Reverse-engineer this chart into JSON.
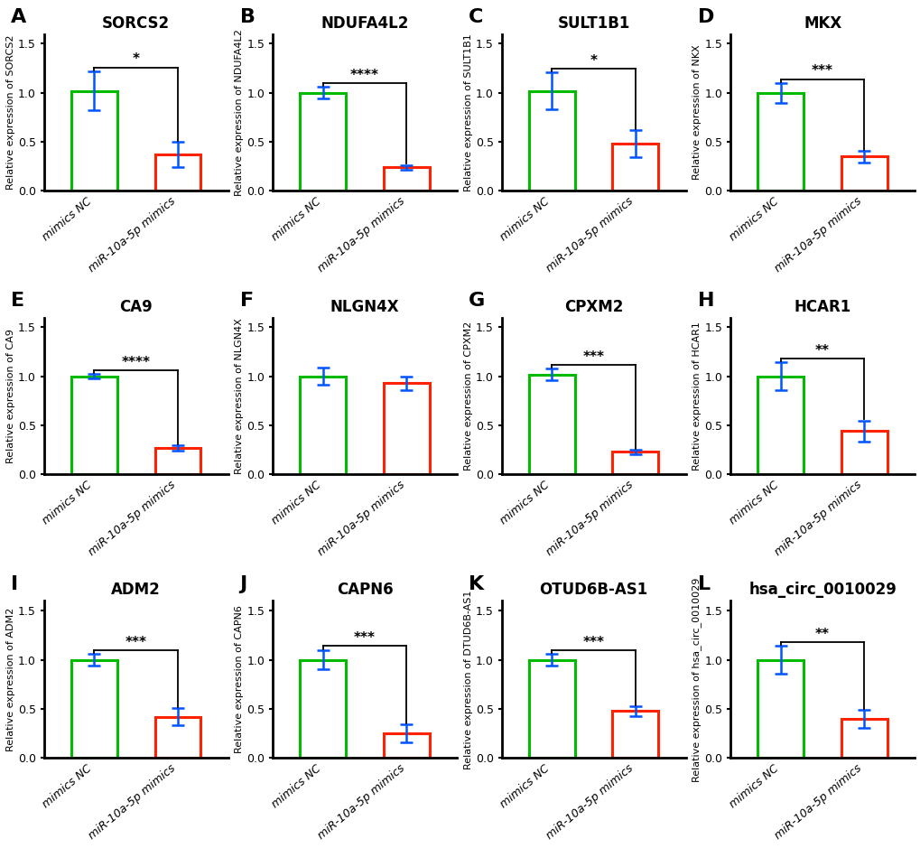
{
  "panels": [
    {
      "label": "A",
      "title": "SORCS2",
      "ylabel": "Relative expression of SORCS2",
      "bar1_val": 1.02,
      "bar1_err": 0.2,
      "bar2_val": 0.37,
      "bar2_err": 0.13,
      "sig": "*",
      "ylim": [
        0,
        1.6
      ]
    },
    {
      "label": "B",
      "title": "NDUFA4L2",
      "ylabel": "Relative expression of NDUFA4L2",
      "bar1_val": 1.0,
      "bar1_err": 0.06,
      "bar2_val": 0.24,
      "bar2_err": 0.025,
      "sig": "****",
      "ylim": [
        0,
        1.6
      ]
    },
    {
      "label": "C",
      "title": "SULT1B1",
      "ylabel": "Relative expression of SULT1B1",
      "bar1_val": 1.02,
      "bar1_err": 0.19,
      "bar2_val": 0.48,
      "bar2_err": 0.14,
      "sig": "*",
      "ylim": [
        0,
        1.6
      ]
    },
    {
      "label": "D",
      "title": "MKX",
      "ylabel": "Relative expression of NKX",
      "bar1_val": 1.0,
      "bar1_err": 0.1,
      "bar2_val": 0.35,
      "bar2_err": 0.06,
      "sig": "***",
      "ylim": [
        0,
        1.6
      ]
    },
    {
      "label": "E",
      "title": "CA9",
      "ylabel": "Relative expression of CA9",
      "bar1_val": 1.0,
      "bar1_err": 0.025,
      "bar2_val": 0.27,
      "bar2_err": 0.025,
      "sig": "****",
      "ylim": [
        0,
        1.6
      ]
    },
    {
      "label": "F",
      "title": "NLGN4X",
      "ylabel": "Relative expression of NLGN4X",
      "bar1_val": 1.0,
      "bar1_err": 0.09,
      "bar2_val": 0.93,
      "bar2_err": 0.07,
      "sig": null,
      "ylim": [
        0,
        1.6
      ]
    },
    {
      "label": "G",
      "title": "CPXM2",
      "ylabel": "Relative expression of CPXM2",
      "bar1_val": 1.02,
      "bar1_err": 0.06,
      "bar2_val": 0.23,
      "bar2_err": 0.025,
      "sig": "***",
      "ylim": [
        0,
        1.6
      ]
    },
    {
      "label": "H",
      "title": "HCAR1",
      "ylabel": "Relative expression of HCAR1",
      "bar1_val": 1.0,
      "bar1_err": 0.14,
      "bar2_val": 0.44,
      "bar2_err": 0.11,
      "sig": "**",
      "ylim": [
        0,
        1.6
      ]
    },
    {
      "label": "I",
      "title": "ADM2",
      "ylabel": "Relative expression of ADM2",
      "bar1_val": 1.0,
      "bar1_err": 0.06,
      "bar2_val": 0.42,
      "bar2_err": 0.09,
      "sig": "***",
      "ylim": [
        0,
        1.6
      ]
    },
    {
      "label": "J",
      "title": "CAPN6",
      "ylabel": "Relative expression of CAPN6",
      "bar1_val": 1.0,
      "bar1_err": 0.1,
      "bar2_val": 0.25,
      "bar2_err": 0.09,
      "sig": "***",
      "ylim": [
        0,
        1.6
      ]
    },
    {
      "label": "K",
      "title": "OTUD6B-AS1",
      "ylabel": "Relative expression of DTUD6B-AS1",
      "bar1_val": 1.0,
      "bar1_err": 0.06,
      "bar2_val": 0.48,
      "bar2_err": 0.05,
      "sig": "***",
      "ylim": [
        0,
        1.6
      ]
    },
    {
      "label": "L",
      "title": "hsa_circ_0010029",
      "ylabel": "Relative expression of hsa_circ_0010029",
      "bar1_val": 1.0,
      "bar1_err": 0.14,
      "bar2_val": 0.4,
      "bar2_err": 0.09,
      "sig": "**",
      "ylim": [
        0,
        1.6
      ]
    }
  ],
  "bar_colors": [
    "#00bb00",
    "#ff2200"
  ],
  "err_color": "#0055ff",
  "bar_width": 0.55,
  "xtick_labels": [
    "mimics NC",
    "miR-10a-5p mimics"
  ],
  "yticks": [
    0.0,
    0.5,
    1.0,
    1.5
  ],
  "background_color": "#ffffff",
  "label_fontsize": 16,
  "title_fontsize": 12,
  "ylabel_fontsize": 8,
  "xtick_fontsize": 9,
  "ytick_fontsize": 9,
  "sig_fontsize": 11
}
